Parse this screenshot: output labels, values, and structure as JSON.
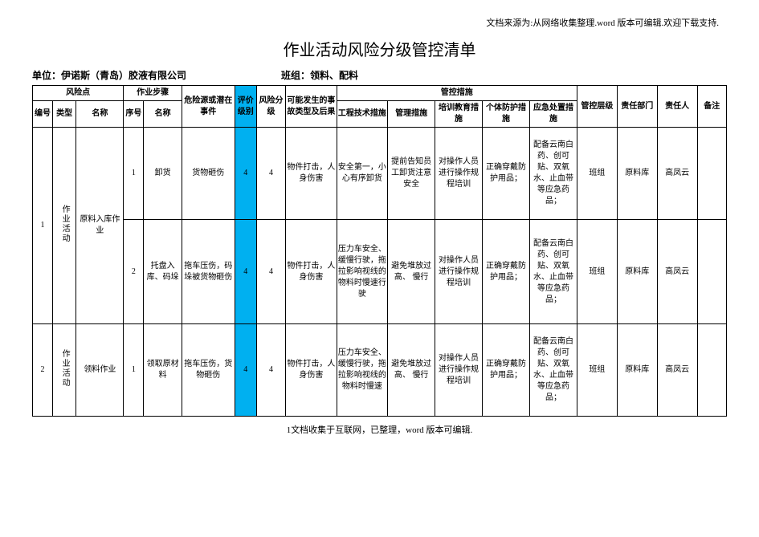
{
  "source_note": "文档来源为:从网络收集整理.word 版本可编辑.欢迎下载支持.",
  "title": "作业活动风险分级管控清单",
  "unit_label": "单位：",
  "unit_value": "伊诺斯（青岛）胶液有限公司",
  "team_label": "班组：",
  "team_value": "领料、配料",
  "footer_note": "1文档收集于互联网，已整理，word 版本可编辑.",
  "headers": {
    "risk_point": "风险点",
    "work_step": "作业步骤",
    "hazard": "危险源或潜在事件",
    "eval_level": "评价级别",
    "risk_grade": "风险分级",
    "accident": "可能发生的事故类型及后果",
    "ctrl_measures": "管控措施",
    "ctrl_level": "管控层级",
    "dept": "责任部门",
    "person": "责任人",
    "remark": "备注",
    "no": "编号",
    "type": "类型",
    "name": "名称",
    "seq": "序号",
    "step_name": "名称",
    "eng": "工程技术措施",
    "mgmt": "管理措施",
    "train": "培训教育措施",
    "ppe": "个体防护措施",
    "emer": "应急处置措施"
  },
  "rows": [
    {
      "no": "1",
      "type": "作业活动",
      "name": "原料入库作业",
      "seq": "1",
      "step": "卸货",
      "hazard": "货物砸伤",
      "eval": "4",
      "risk": "4",
      "accident": "物件打击，人身伤害",
      "eng": "安全第一，小心有序卸货",
      "mgmt": "提前告知员工卸货注意安全",
      "train": "对操作人员进行操作规程培训",
      "ppe": "正确穿戴防护用品；",
      "emer": "配备云南白药、创可贴、双氧水、止血带等应急药品；",
      "level": "班组",
      "dept": "原料库",
      "person": "高凤云",
      "remark": ""
    },
    {
      "seq": "2",
      "step": "托盘入库、码垛",
      "hazard": "拖车压伤，码垛被货物砸伤",
      "eval": "4",
      "risk": "4",
      "accident": "物件打击，人身伤害",
      "eng": "压力车安全、缓慢行驶，拖拉影响视线的物料时慢速行驶",
      "mgmt": "避免堆放过高、 慢行",
      "train": "对操作人员进行操作规程培训",
      "ppe": "正确穿戴防护用品；",
      "emer": "配备云南白药、创可贴、双氧水、止血带等应急药品；",
      "level": "班组",
      "dept": "原料库",
      "person": "高凤云",
      "remark": ""
    },
    {
      "no": "2",
      "type": "作业活动",
      "name": "领料作业",
      "seq": "1",
      "step": "领取原材料",
      "hazard": "拖车压伤，货物砸伤",
      "eval": "4",
      "risk": "4",
      "accident": "物件打击，人身伤害",
      "eng": "压力车安全、缓慢行驶，拖拉影响视线的物料时慢速",
      "mgmt": "避免堆放过高、 慢行",
      "train": "对操作人员进行操作规程培训",
      "ppe": "正确穿戴防护用品；",
      "emer": "配备云南白药、创可贴、双氧水、止血带等应急药品；",
      "level": "班组",
      "dept": "原料库",
      "person": "高凤云",
      "remark": ""
    }
  ],
  "colors": {
    "highlight": "#00b0f0",
    "border": "#000000",
    "background": "#ffffff",
    "text": "#000000"
  }
}
